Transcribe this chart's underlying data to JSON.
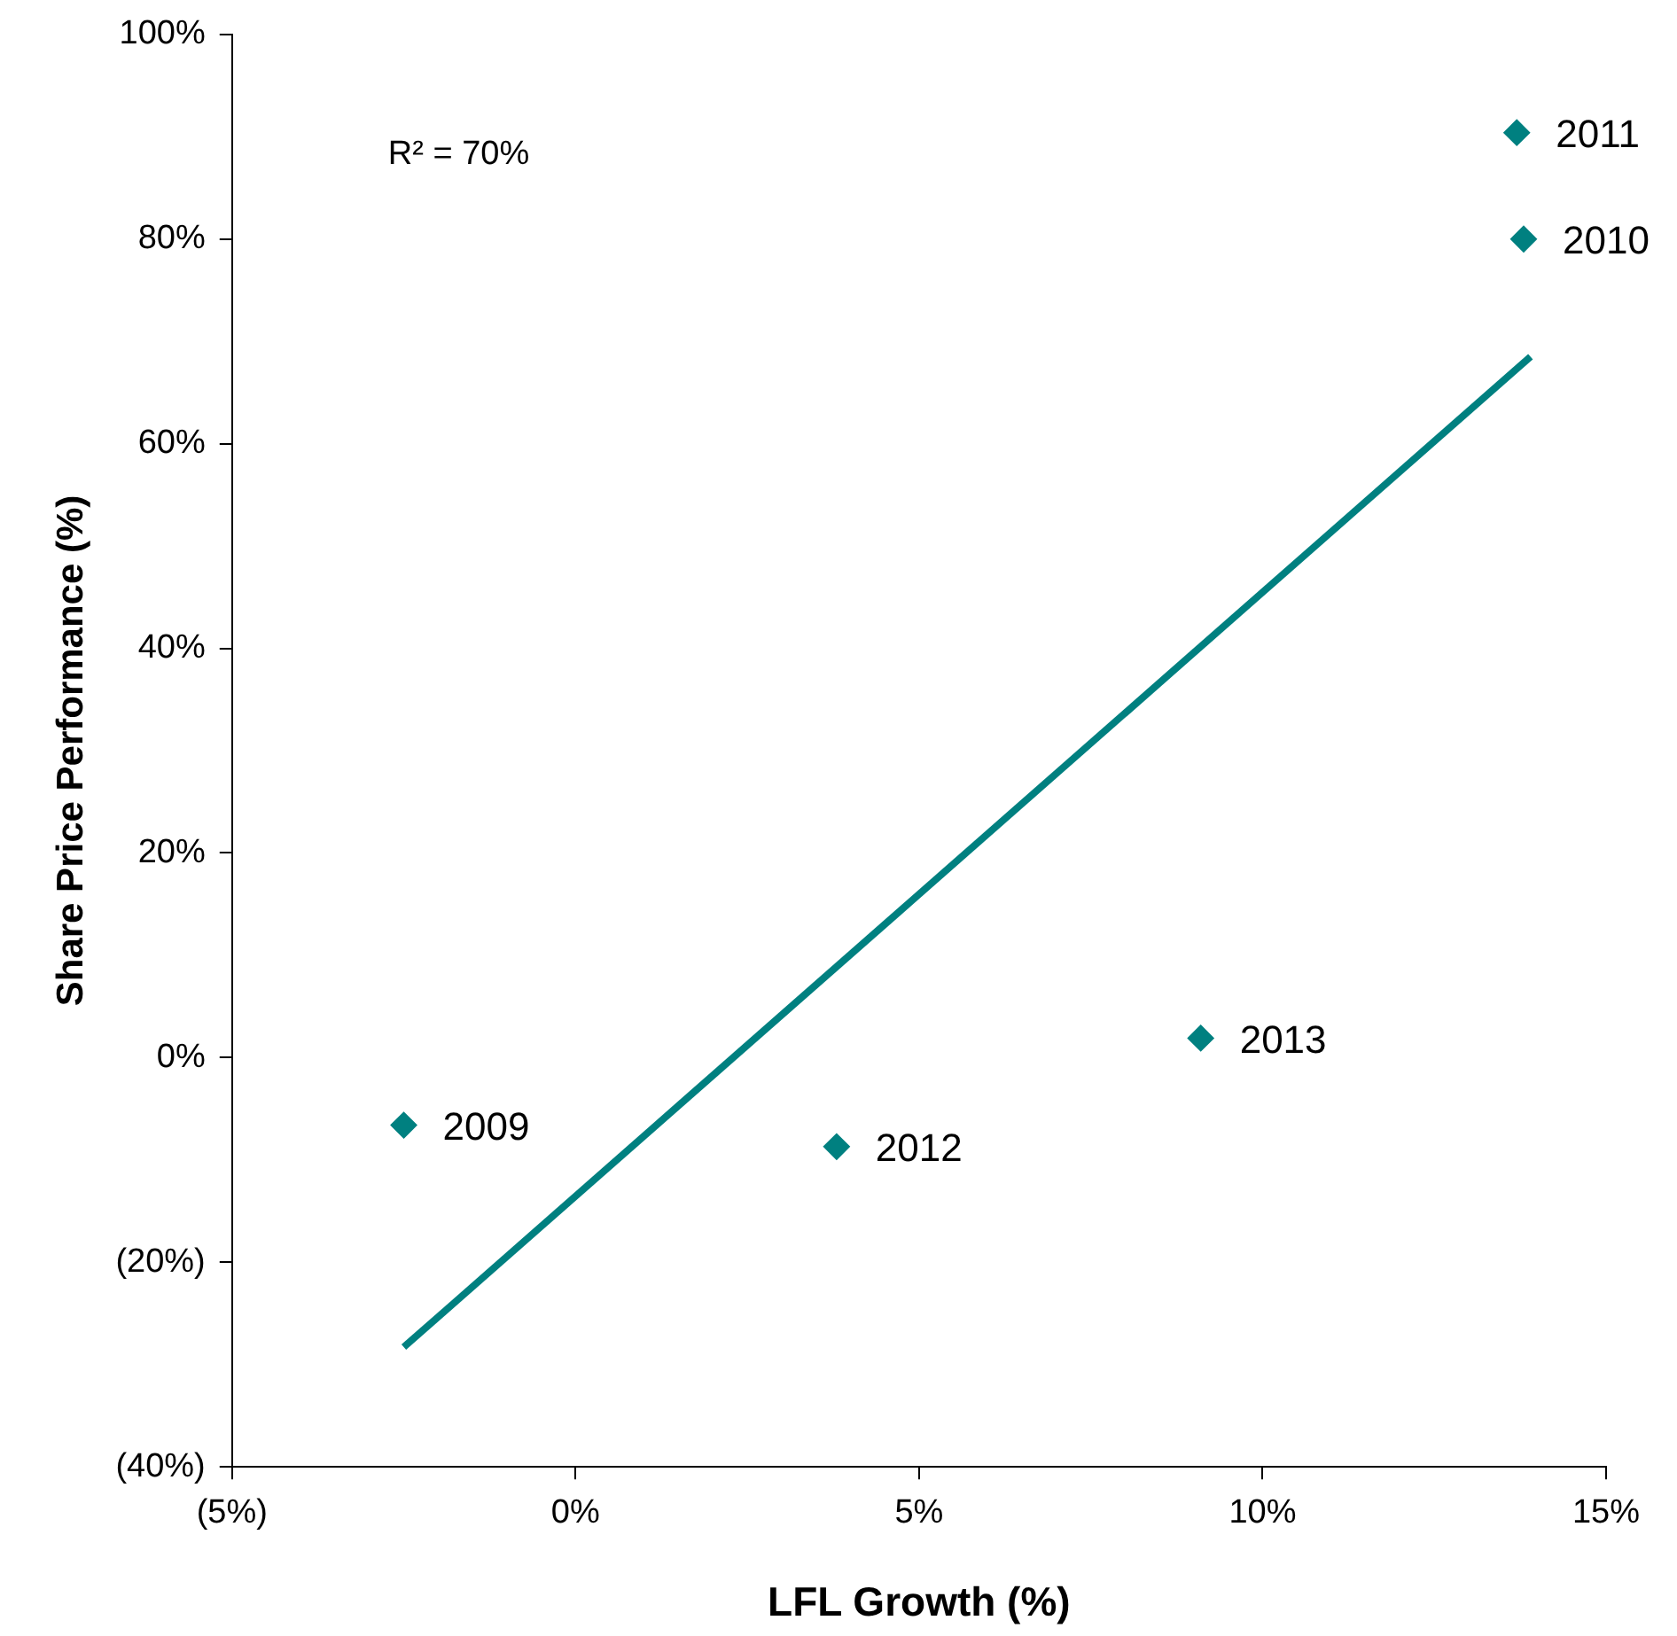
{
  "chart_data": {
    "type": "scatter",
    "xlabel": "LFL Growth (%)",
    "ylabel": "Share Price Performance (%)",
    "annotations": [
      "R² = 70%"
    ],
    "xlim": [
      -5,
      15
    ],
    "xticks": [
      {
        "value": -5,
        "label": "(5%)"
      },
      {
        "value": 0,
        "label": "0%"
      },
      {
        "value": 5,
        "label": "5%"
      },
      {
        "value": 10,
        "label": "10%"
      },
      {
        "value": 15,
        "label": "15%"
      }
    ],
    "ylim": [
      -40,
      100
    ],
    "yticks": [
      {
        "value": -40,
        "label": "(40%)"
      },
      {
        "value": -20,
        "label": "(20%)"
      },
      {
        "value": 0,
        "label": "0%"
      },
      {
        "value": 20,
        "label": "20%"
      },
      {
        "value": 40,
        "label": "40%"
      },
      {
        "value": 60,
        "label": "60%"
      },
      {
        "value": 80,
        "label": "80%"
      },
      {
        "value": 100,
        "label": "100%"
      }
    ],
    "marker": "diamond",
    "series": [
      {
        "name": "2009",
        "color": "#008080",
        "x": [
          -2.5
        ],
        "values": [
          -6.6
        ]
      },
      {
        "name": "2010",
        "color": "#008080",
        "x": [
          13.8
        ],
        "values": [
          80
        ]
      },
      {
        "name": "2011",
        "color": "#008080",
        "x": [
          13.7
        ],
        "values": [
          90.4
        ]
      },
      {
        "name": "2012",
        "color": "#008080",
        "x": [
          3.8
        ],
        "values": [
          -8.7
        ]
      },
      {
        "name": "2013",
        "color": "#008080",
        "x": [
          9.1
        ],
        "values": [
          1.9
        ]
      },
      {
        "type": "line",
        "color": "#008080",
        "x": [
          -2.5,
          13.9
        ],
        "values": [
          -28.3,
          68.5
        ],
        "marker": "none",
        "line_style": "solid"
      }
    ]
  }
}
